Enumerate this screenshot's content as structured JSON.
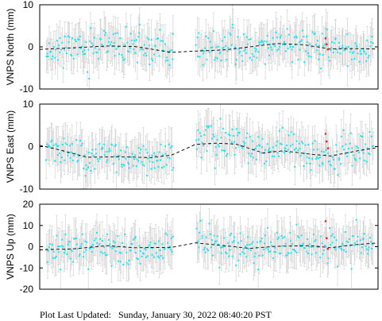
{
  "footer": {
    "label": "Plot Last Updated:",
    "value": "Sunday, January 30, 2022 08:40:20 PST"
  },
  "colors": {
    "points": "#1ee3f0",
    "recent_points": "#e8251f",
    "error_bars": "#cccccc",
    "model": "#000000",
    "frame": "#000000"
  },
  "chart_data": [
    {
      "type": "scatter",
      "ylabel": "VNPS North (mm)",
      "ylim": [
        -10,
        10
      ],
      "yticks": [
        -10,
        0,
        10
      ],
      "xrange": [
        0,
        100
      ],
      "grid": false,
      "data_gap": [
        39.5,
        46.0
      ],
      "noise_sd": 2.0,
      "error_bar": 4.0,
      "n_points": 330,
      "seed": 11,
      "series": [
        {
          "role": "model",
          "style": "dashed",
          "x": [
            0,
            10,
            20,
            28,
            39,
            46,
            55,
            62,
            70,
            78,
            86,
            92,
            100
          ],
          "y": [
            -0.6,
            -0.2,
            0.2,
            0.1,
            -1.3,
            -1.0,
            -0.7,
            0.0,
            0.8,
            0.5,
            -0.5,
            -0.4,
            -0.5
          ]
        },
        {
          "role": "recent",
          "x": [
            84.5,
            84.8,
            85.2
          ],
          "y": [
            2.0,
            0.6,
            -0.6
          ]
        }
      ]
    },
    {
      "type": "scatter",
      "ylabel": "VNPS East (mm)",
      "ylim": [
        -10,
        10
      ],
      "yticks": [
        -10,
        0,
        10
      ],
      "xrange": [
        0,
        100
      ],
      "grid": false,
      "data_gap": [
        39.5,
        46.0
      ],
      "noise_sd": 2.0,
      "error_bar": 4.0,
      "n_points": 330,
      "seed": 23,
      "series": [
        {
          "role": "model",
          "style": "dashed",
          "x": [
            0,
            6,
            14,
            24,
            33,
            39,
            46,
            52,
            58,
            66,
            72,
            80,
            86,
            94,
            100
          ],
          "y": [
            0.3,
            -0.8,
            -2.5,
            -2.4,
            -2.6,
            -2.0,
            0.5,
            0.8,
            0.6,
            -1.5,
            -1.0,
            -1.8,
            -2.2,
            -1.0,
            -0.2
          ]
        },
        {
          "role": "recent",
          "x": [
            84.5,
            84.8,
            85.2
          ],
          "y": [
            3.0,
            1.2,
            -0.4
          ]
        }
      ]
    },
    {
      "type": "scatter",
      "ylabel": "VNPS Up (mm)",
      "ylim": [
        -20,
        20
      ],
      "yticks": [
        -20,
        -10,
        0,
        10,
        20
      ],
      "xrange": [
        0,
        100
      ],
      "grid": false,
      "data_gap": [
        39.5,
        46.0
      ],
      "noise_sd": 3.8,
      "error_bar": 8.0,
      "n_points": 330,
      "seed": 37,
      "series": [
        {
          "role": "model",
          "style": "dashed",
          "x": [
            0,
            10,
            20,
            28,
            39,
            46,
            55,
            62,
            70,
            80,
            86,
            92,
            100
          ],
          "y": [
            -1.5,
            -1.0,
            0.5,
            -0.5,
            -0.3,
            1.8,
            0.4,
            -0.8,
            0.2,
            0.5,
            -0.5,
            0.8,
            1.8
          ]
        },
        {
          "role": "recent",
          "x": [
            84.5,
            84.8,
            85.2
          ],
          "y": [
            12.0,
            4.0,
            -1.0
          ]
        }
      ]
    }
  ]
}
